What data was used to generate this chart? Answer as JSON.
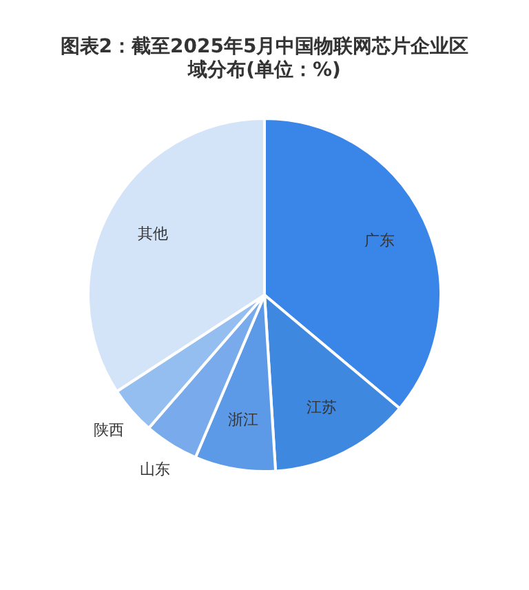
{
  "chart_data": {
    "type": "pie",
    "title": "图表2：截至2025年5月中国物联网芯片企业区域分布(单位：%)",
    "categories": [
      "广东",
      "江苏",
      "浙江",
      "山东",
      "陕西",
      "其他"
    ],
    "values": [
      36.1,
      12.9,
      7.4,
      5.0,
      4.4,
      34.2
    ],
    "colors": [
      "#3a86e8",
      "#3f88e0",
      "#5c99e6",
      "#79aaec",
      "#94bdf0",
      "#d3e3f8"
    ],
    "legend": false
  }
}
